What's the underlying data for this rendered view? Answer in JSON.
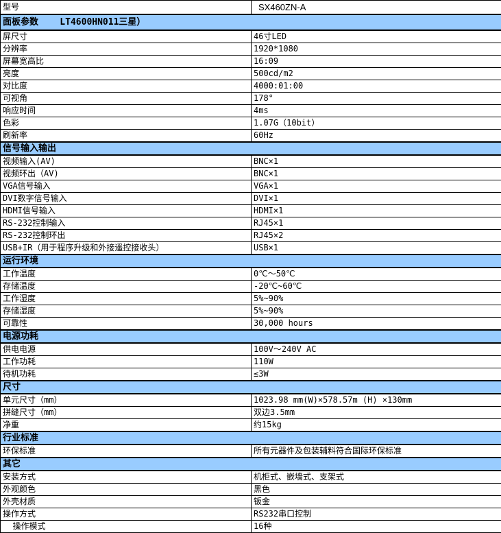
{
  "colors": {
    "section_band_bg": "#99CCFF",
    "grid_border": "#000000",
    "text": "#000000",
    "page_bg": "#FFFFFF"
  },
  "header": {
    "label": "型号",
    "value": "SX460ZN-A"
  },
  "sections": [
    {
      "title": "面板参数    LT4600HN011三星）",
      "rows": [
        [
          "屏尺寸",
          "46寸LED"
        ],
        [
          "分辨率",
          "1920*1080"
        ],
        [
          "屏幕宽高比",
          "16:09"
        ],
        [
          "亮度",
          "500cd/m2"
        ],
        [
          "对比度",
          "4000:01:00"
        ],
        [
          "可视角",
          "178°"
        ],
        [
          "响应时间",
          "4ms"
        ],
        [
          "色彩",
          "1.07G（10bit）"
        ],
        [
          "刷新率",
          "60Hz"
        ]
      ]
    },
    {
      "title": "信号输入输出",
      "rows": [
        [
          "视频输入(AV)",
          "BNC×1"
        ],
        [
          "视频环出（AV)",
          "BNC×1"
        ],
        [
          "VGA信号输入",
          "VGA×1"
        ],
        [
          "DVI数字信号输入",
          "DVI×1"
        ],
        [
          "HDMI信号输入",
          "HDMI×1"
        ],
        [
          "RS-232控制输入",
          "RJ45×1"
        ],
        [
          "RS-232控制环出",
          "RJ45×2"
        ],
        [
          "USB+IR（用于程序升级和外接遥控接收头）",
          "USB×1"
        ]
      ]
    },
    {
      "title": "运行环境",
      "rows": [
        [
          "工作温度",
          "0℃～50℃"
        ],
        [
          "存储温度",
          "-20℃~60℃"
        ],
        [
          "工作湿度",
          "5%~90%"
        ],
        [
          "存储湿度",
          "5%~90%"
        ],
        [
          "可靠性",
          "30,000 hours"
        ]
      ]
    },
    {
      "title": "电源功耗",
      "rows": [
        [
          "供电电源",
          "100V～240V AC"
        ],
        [
          "工作功耗",
          "110W"
        ],
        [
          "待机功耗",
          "≤3W"
        ]
      ]
    },
    {
      "title": "尺寸",
      "rows": [
        [
          "单元尺寸（mm）",
          "1023.98 mm(W)×578.57m (H) ×130mm"
        ],
        [
          "拼缝尺寸（mm）",
          "双边3.5mm"
        ],
        [
          "净重",
          "约15kg"
        ]
      ]
    },
    {
      "title": "行业标准",
      "rows": [
        [
          "环保标准",
          "所有元器件及包装辅料符合国际环保标准"
        ]
      ]
    },
    {
      "title": "其它",
      "rows": [
        [
          "安装方式",
          "机柜式、嵌墙式、支架式"
        ],
        [
          "外观颜色",
          "黑色"
        ],
        [
          "外壳材质",
          "钣金"
        ],
        [
          "操作方式",
          "RS232串口控制"
        ],
        [
          "  操作模式",
          "16种"
        ]
      ]
    }
  ]
}
